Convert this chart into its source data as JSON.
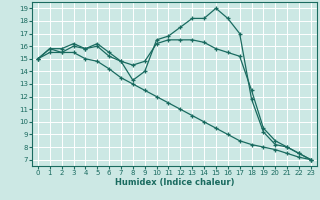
{
  "xlabel": "Humidex (Indice chaleur)",
  "bg_color": "#cce8e4",
  "grid_color": "#ffffff",
  "line_color": "#1a6b60",
  "xlim": [
    -0.5,
    23.5
  ],
  "ylim": [
    6.5,
    19.5
  ],
  "xticks": [
    0,
    1,
    2,
    3,
    4,
    5,
    6,
    7,
    8,
    9,
    10,
    11,
    12,
    13,
    14,
    15,
    16,
    17,
    18,
    19,
    20,
    21,
    22,
    23
  ],
  "yticks": [
    7,
    8,
    9,
    10,
    11,
    12,
    13,
    14,
    15,
    16,
    17,
    18,
    19
  ],
  "line1_x": [
    0,
    1,
    2,
    3,
    4,
    5,
    6,
    7,
    8,
    9,
    10,
    11,
    12,
    13,
    14,
    15,
    16,
    17,
    18,
    19,
    20,
    21,
    22,
    23
  ],
  "line1_y": [
    15.0,
    15.8,
    15.8,
    16.2,
    15.8,
    16.2,
    15.5,
    14.8,
    13.3,
    14.0,
    16.5,
    16.8,
    17.5,
    18.2,
    18.2,
    19.0,
    18.2,
    17.0,
    11.8,
    9.2,
    8.2,
    8.0,
    7.5,
    7.0
  ],
  "line2_x": [
    0,
    1,
    2,
    3,
    4,
    5,
    6,
    7,
    8,
    9,
    10,
    11,
    12,
    13,
    14,
    15,
    16,
    17,
    18,
    19,
    20,
    21,
    22,
    23
  ],
  "line2_y": [
    15.0,
    15.8,
    15.5,
    16.0,
    15.8,
    16.0,
    15.2,
    14.8,
    14.5,
    14.8,
    16.2,
    16.5,
    16.5,
    16.5,
    16.3,
    15.8,
    15.5,
    15.2,
    12.5,
    9.5,
    8.5,
    8.0,
    7.5,
    7.0
  ],
  "line3_x": [
    0,
    1,
    2,
    3,
    4,
    5,
    6,
    7,
    8,
    9,
    10,
    11,
    12,
    13,
    14,
    15,
    16,
    17,
    18,
    19,
    20,
    21,
    22,
    23
  ],
  "line3_y": [
    15.0,
    15.5,
    15.5,
    15.5,
    15.0,
    14.8,
    14.2,
    13.5,
    13.0,
    12.5,
    12.0,
    11.5,
    11.0,
    10.5,
    10.0,
    9.5,
    9.0,
    8.5,
    8.2,
    8.0,
    7.8,
    7.5,
    7.2,
    7.0
  ]
}
